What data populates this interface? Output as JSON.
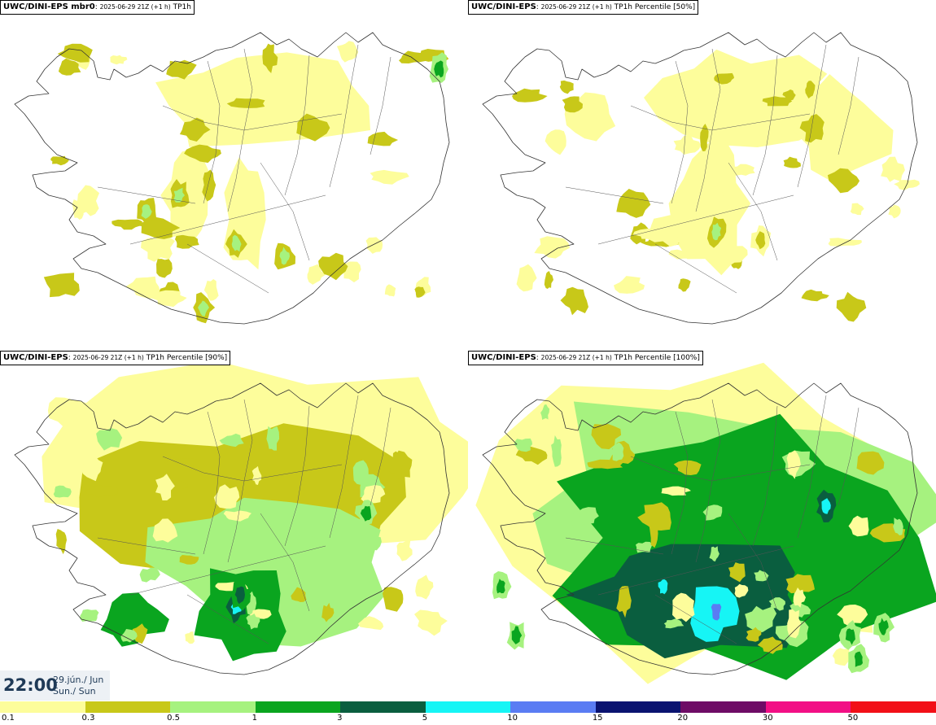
{
  "panels": [
    {
      "model": "UWC/DINI-EPS mbr0",
      "sep": ": ",
      "run": "2025-06-29 21Z (+1 h)",
      "field": "TP1h",
      "level": 1
    },
    {
      "model": "UWC/DINI-EPS",
      "sep": ": ",
      "run": "2025-06-29 21Z (+1 h)",
      "field": "TP1h Percentile [50%]",
      "level": 1
    },
    {
      "model": "UWC/DINI-EPS",
      "sep": ": ",
      "run": "2025-06-29 21Z (+1 h)",
      "field": "TP1h Percentile [90%]",
      "level": 2
    },
    {
      "model": "UWC/DINI-EPS",
      "sep": ": ",
      "run": "2025-06-29 21Z (+1 h)",
      "field": "TP1h Percentile [100%]",
      "level": 3
    }
  ],
  "valid_time": {
    "time": "22:00",
    "date_line1": "29.jún./ Jun",
    "date_line2": "Sun./ Sun"
  },
  "colorbar": {
    "colors": [
      "#fdfd9b",
      "#c8c819",
      "#a6f27f",
      "#0aa51f",
      "#0a5e3f",
      "#16f5f5",
      "#5a7cf3",
      "#0a1370",
      "#6e0c66",
      "#f20f85",
      "#f20f17"
    ],
    "ticks": [
      "0.1",
      "0.3",
      "0.5",
      "1",
      "3",
      "5",
      "10",
      "15",
      "20",
      "30",
      "50"
    ]
  }
}
